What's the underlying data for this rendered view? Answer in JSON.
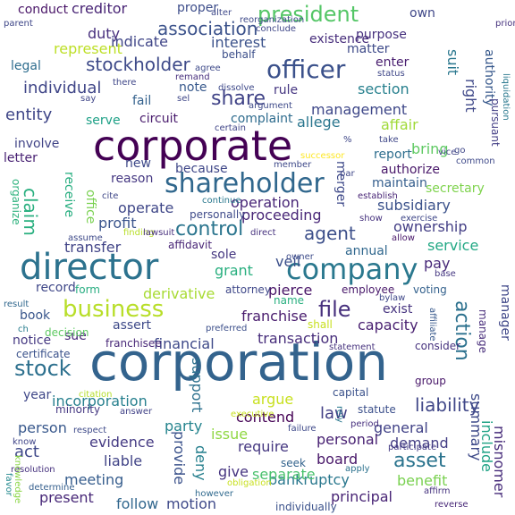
{
  "words": [
    {
      "text": "corporation",
      "color": "#33638d"
    },
    {
      "text": "corporate",
      "color": "#440154"
    },
    {
      "text": "director",
      "color": "#2c728e"
    },
    {
      "text": "company",
      "color": "#2a788e"
    },
    {
      "text": "shareholder",
      "color": "#30678d"
    },
    {
      "text": "business",
      "color": "#b8de29"
    },
    {
      "text": "president",
      "color": "#55c667"
    },
    {
      "text": "officer",
      "color": "#3b518b"
    },
    {
      "text": "stock",
      "color": "#2d708e"
    },
    {
      "text": "stockholder",
      "color": "#3e4a89"
    },
    {
      "text": "association",
      "color": "#3b528b"
    },
    {
      "text": "share",
      "color": "#404387"
    },
    {
      "text": "agent",
      "color": "#3c4f8a"
    },
    {
      "text": "file",
      "color": "#462f7c"
    },
    {
      "text": "control",
      "color": "#2b758e"
    },
    {
      "text": "claim",
      "color": "#29af7f"
    },
    {
      "text": "action",
      "color": "#2c718e"
    },
    {
      "text": "individual",
      "color": "#404688"
    },
    {
      "text": "entity",
      "color": "#3f4688"
    },
    {
      "text": "asset",
      "color": "#2b748e"
    },
    {
      "text": "liability",
      "color": "#404788"
    },
    {
      "text": "bankruptcy",
      "color": "#2a788e"
    },
    {
      "text": "incorporation",
      "color": "#27808e"
    },
    {
      "text": "franchise",
      "color": "#481b6d"
    },
    {
      "text": "transaction",
      "color": "#472d7b"
    },
    {
      "text": "operation",
      "color": "#482677"
    },
    {
      "text": "subsidiary",
      "color": "#3b528b"
    },
    {
      "text": "ownership",
      "color": "#433e85"
    },
    {
      "text": "management",
      "color": "#3f4889"
    },
    {
      "text": "proceeding",
      "color": "#482677"
    },
    {
      "text": "derivative",
      "color": "#a8db34"
    },
    {
      "text": "capacity",
      "color": "#481f70"
    },
    {
      "text": "financial",
      "color": "#3e4989"
    },
    {
      "text": "separate",
      "color": "#4ac16d"
    },
    {
      "text": "principal",
      "color": "#482475"
    },
    {
      "text": "meeting",
      "color": "#365d8d"
    },
    {
      "text": "motion",
      "color": "#3e4989"
    },
    {
      "text": "follow",
      "color": "#31678e"
    },
    {
      "text": "present",
      "color": "#482878"
    },
    {
      "text": "evidence",
      "color": "#443a83"
    },
    {
      "text": "person",
      "color": "#38588c"
    },
    {
      "text": "act",
      "color": "#3f4889"
    },
    {
      "text": "issue",
      "color": "#90d743"
    },
    {
      "text": "require",
      "color": "#453781"
    },
    {
      "text": "argue",
      "color": "#c8e020"
    },
    {
      "text": "party",
      "color": "#25848e"
    },
    {
      "text": "law",
      "color": "#423f85"
    },
    {
      "text": "general",
      "color": "#414287"
    },
    {
      "text": "demand",
      "color": "#433d84"
    },
    {
      "text": "personal",
      "color": "#482173"
    },
    {
      "text": "summary",
      "color": "#3e4a89"
    },
    {
      "text": "include",
      "color": "#20a386"
    },
    {
      "text": "benefit",
      "color": "#7ad151"
    },
    {
      "text": "misnomer",
      "color": "#472c7a"
    },
    {
      "text": "provide",
      "color": "#3b528b"
    },
    {
      "text": "deny",
      "color": "#27808e"
    },
    {
      "text": "give",
      "color": "#463480"
    },
    {
      "text": "liable",
      "color": "#414487"
    },
    {
      "text": "board",
      "color": "#481769"
    },
    {
      "text": "contend",
      "color": "#440154"
    },
    {
      "text": "support",
      "color": "#2d718e"
    },
    {
      "text": "year",
      "color": "#3f4788"
    },
    {
      "text": "sue",
      "color": "#482979"
    },
    {
      "text": "notice",
      "color": "#453882"
    },
    {
      "text": "book",
      "color": "#39568c"
    },
    {
      "text": "record",
      "color": "#3f4788"
    },
    {
      "text": "assert",
      "color": "#3e4a89"
    },
    {
      "text": "exist",
      "color": "#46337f"
    },
    {
      "text": "pierce",
      "color": "#481467"
    },
    {
      "text": "pay",
      "color": "#482979"
    },
    {
      "text": "veil",
      "color": "#3c508b"
    },
    {
      "text": "grant",
      "color": "#29af7f"
    },
    {
      "text": "sole",
      "color": "#453781"
    },
    {
      "text": "annual",
      "color": "#31688e"
    },
    {
      "text": "service",
      "color": "#22a884"
    },
    {
      "text": "transfer",
      "color": "#414487"
    },
    {
      "text": "profit",
      "color": "#3a548c"
    },
    {
      "text": "operate",
      "color": "#3f4788"
    },
    {
      "text": "receive",
      "color": "#28ae80"
    },
    {
      "text": "office",
      "color": "#7ad151"
    },
    {
      "text": "organize",
      "color": "#2db27d"
    },
    {
      "text": "reason",
      "color": "#453882"
    },
    {
      "text": "new",
      "color": "#3e4989"
    },
    {
      "text": "because",
      "color": "#3f4788"
    },
    {
      "text": "letter",
      "color": "#482173"
    },
    {
      "text": "involve",
      "color": "#414487"
    },
    {
      "text": "serve",
      "color": "#1fa187"
    },
    {
      "text": "fail",
      "color": "#34618d"
    },
    {
      "text": "circuit",
      "color": "#481a6c"
    },
    {
      "text": "complaint",
      "color": "#2f6c8e"
    },
    {
      "text": "note",
      "color": "#38598c"
    },
    {
      "text": "rule",
      "color": "#453581"
    },
    {
      "text": "section",
      "color": "#27808e"
    },
    {
      "text": "allege",
      "color": "#2a768e"
    },
    {
      "text": "affair",
      "color": "#a0da39"
    },
    {
      "text": "bring",
      "color": "#5ec962"
    },
    {
      "text": "merger",
      "color": "#3e4989"
    },
    {
      "text": "suit",
      "color": "#2a778e"
    },
    {
      "text": "right",
      "color": "#3f4889"
    },
    {
      "text": "authority",
      "color": "#38598c"
    },
    {
      "text": "pursuant",
      "color": "#433e85"
    },
    {
      "text": "authorize",
      "color": "#481769"
    },
    {
      "text": "secretary",
      "color": "#7fd34e"
    },
    {
      "text": "report",
      "color": "#2e6e8e"
    },
    {
      "text": "maintain",
      "color": "#355e8d"
    },
    {
      "text": "enter",
      "color": "#481d6f"
    },
    {
      "text": "matter",
      "color": "#3e4a89"
    },
    {
      "text": "purpose",
      "color": "#46307e"
    },
    {
      "text": "existence",
      "color": "#472d7b"
    },
    {
      "text": "interest",
      "color": "#3b528b"
    },
    {
      "text": "duty",
      "color": "#472f7d"
    },
    {
      "text": "represent",
      "color": "#bddf26"
    },
    {
      "text": "legal",
      "color": "#2e6d8e"
    },
    {
      "text": "indicate",
      "color": "#404688"
    },
    {
      "text": "conduct",
      "color": "#481467"
    },
    {
      "text": "creditor",
      "color": "#482475"
    },
    {
      "text": "proper",
      "color": "#3d4d8a"
    },
    {
      "text": "own",
      "color": "#3f4788"
    },
    {
      "text": "behalf",
      "color": "#3c4f8a"
    },
    {
      "text": "personally",
      "color": "#3e4a89"
    },
    {
      "text": "affidavit",
      "color": "#482576"
    },
    {
      "text": "form",
      "color": "#27ad81"
    },
    {
      "text": "voting",
      "color": "#34618d"
    },
    {
      "text": "capital",
      "color": "#3b528b"
    },
    {
      "text": "manage",
      "color": "#472c7a"
    },
    {
      "text": "manager",
      "color": "#3f4788"
    },
    {
      "text": "minority",
      "color": "#453882"
    },
    {
      "text": "certificate",
      "color": "#3b528b"
    },
    {
      "text": "franchisee",
      "color": "#482878"
    },
    {
      "text": "decision",
      "color": "#5ec962"
    },
    {
      "text": "name",
      "color": "#29af7f"
    },
    {
      "text": "attorney",
      "color": "#3f4889"
    },
    {
      "text": "employee",
      "color": "#48186a"
    },
    {
      "text": "owner",
      "color": "#3e4c8a"
    },
    {
      "text": "shall",
      "color": "#c8e020"
    },
    {
      "text": "statement",
      "color": "#46327e"
    },
    {
      "text": "consider",
      "color": "#46327e"
    },
    {
      "text": "citation",
      "color": "#b5de2b"
    },
    {
      "text": "answer",
      "color": "#414287"
    },
    {
      "text": "know",
      "color": "#404588"
    },
    {
      "text": "resolution",
      "color": "#46317e"
    },
    {
      "text": "determine",
      "color": "#355f8d"
    },
    {
      "text": "knowledge",
      "color": "#8bd646"
    },
    {
      "text": "favor",
      "color": "#23898e"
    },
    {
      "text": "seek",
      "color": "#33638d"
    },
    {
      "text": "individually",
      "color": "#3b528b"
    },
    {
      "text": "obligation",
      "color": "#c8e020"
    },
    {
      "text": "however",
      "color": "#306a8e"
    },
    {
      "text": "apply",
      "color": "#2c728e"
    },
    {
      "text": "participate",
      "color": "#443b84"
    },
    {
      "text": "affirm",
      "color": "#46337f"
    },
    {
      "text": "reverse",
      "color": "#482878"
    },
    {
      "text": "period",
      "color": "#472f7d"
    },
    {
      "text": "statute",
      "color": "#3c508b"
    },
    {
      "text": "failure",
      "color": "#3e4989"
    },
    {
      "text": "executive",
      "color": "#c8e020"
    },
    {
      "text": "respect",
      "color": "#3e4a89"
    },
    {
      "text": "rely",
      "color": "#2a788e"
    },
    {
      "text": "group",
      "color": "#481769"
    },
    {
      "text": "result",
      "color": "#31688e"
    },
    {
      "text": "ch",
      "color": "#287d8e"
    },
    {
      "text": "preferred",
      "color": "#3c4f8a"
    },
    {
      "text": "bylaw",
      "color": "#3f4889"
    },
    {
      "text": "affiliate",
      "color": "#38598c"
    },
    {
      "text": "base",
      "color": "#453781"
    },
    {
      "text": "allow",
      "color": "#481769"
    },
    {
      "text": "show",
      "color": "#46327e"
    },
    {
      "text": "exercise",
      "color": "#3f4788"
    },
    {
      "text": "finding",
      "color": "#b8de29"
    },
    {
      "text": "assume",
      "color": "#3e4a89"
    },
    {
      "text": "lawsuit",
      "color": "#472f7d"
    },
    {
      "text": "direct",
      "color": "#46327e"
    },
    {
      "text": "continue",
      "color": "#2a788e"
    },
    {
      "text": "cite",
      "color": "#3f4788"
    },
    {
      "text": "establish",
      "color": "#482576"
    },
    {
      "text": "par",
      "color": "#3f4788"
    },
    {
      "text": "member",
      "color": "#3e4989"
    },
    {
      "text": "successor",
      "color": "#fde725"
    },
    {
      "text": "take",
      "color": "#3f4788"
    },
    {
      "text": "vice",
      "color": "#414487"
    },
    {
      "text": "common",
      "color": "#3e4989"
    },
    {
      "text": "go",
      "color": "#3f4788"
    },
    {
      "text": "%",
      "color": "#3f4788"
    },
    {
      "text": "certain",
      "color": "#404588"
    },
    {
      "text": "argument",
      "color": "#3e4a89"
    },
    {
      "text": "sel",
      "color": "#3f4788"
    },
    {
      "text": "dissolve",
      "color": "#3e4989"
    },
    {
      "text": "remand",
      "color": "#472f7d"
    },
    {
      "text": "say",
      "color": "#404688"
    },
    {
      "text": "there",
      "color": "#3f4788"
    },
    {
      "text": "agree",
      "color": "#3e4a89"
    },
    {
      "text": "status",
      "color": "#3f4788"
    },
    {
      "text": "liquidation",
      "color": "#2a788e"
    },
    {
      "text": "prior",
      "color": "#46327e"
    },
    {
      "text": "conclude",
      "color": "#3f4788"
    },
    {
      "text": "alter",
      "color": "#3e4989"
    },
    {
      "text": "reorganization",
      "color": "#3e4a89"
    },
    {
      "text": "parent",
      "color": "#3f4788"
    }
  ]
}
